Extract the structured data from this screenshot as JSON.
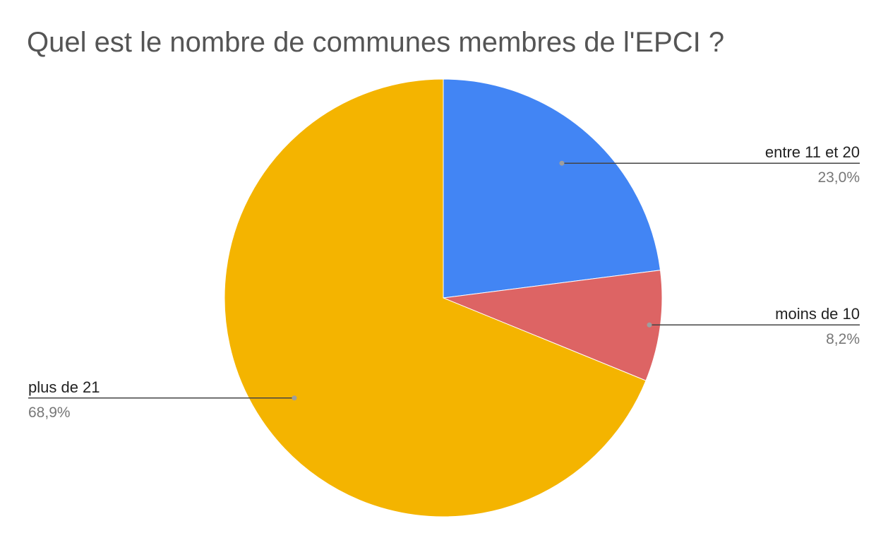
{
  "chart_data": {
    "type": "pie",
    "title": "Quel est le nombre de communes membres de l'EPCI ?",
    "start_angle_deg": 0,
    "direction": "clockwise",
    "legend": "callout labels",
    "slices": [
      {
        "label": "entre 11 et 20",
        "value": 23.0,
        "display": "23,0%",
        "color": "#4285f4",
        "side": "right"
      },
      {
        "label": "moins de 10",
        "value": 8.2,
        "display": "8,2%",
        "color": "#dd6464",
        "side": "right"
      },
      {
        "label": "plus de 21",
        "value": 68.9,
        "display": "68,9%",
        "color": "#f4b400",
        "side": "left"
      }
    ]
  }
}
